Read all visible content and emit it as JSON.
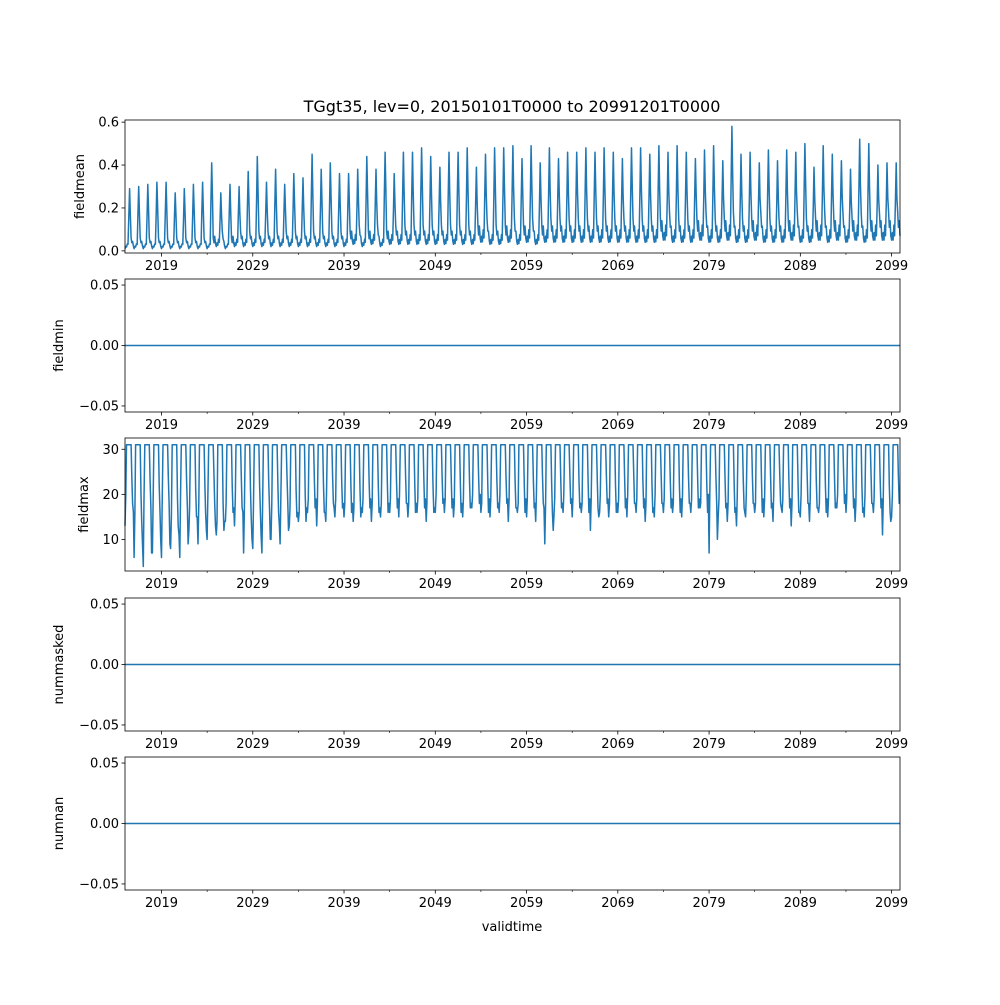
{
  "chart_data": {
    "type": "line",
    "title": "TGgt35, lev=0, 20150101T0000 to 20991201T0000",
    "xlabel": "validtime",
    "x_tick_labels": [
      "2019",
      "2029",
      "2039",
      "2049",
      "2059",
      "2069",
      "2079",
      "2089",
      "2099"
    ],
    "xlim": [
      "2015-01",
      "2099-12"
    ],
    "line_color": "#1f77b4",
    "grid": false,
    "panels": [
      {
        "ylabel": "fieldmean",
        "ylim": [
          -0.01,
          0.61
        ],
        "y_ticks": [
          0.0,
          0.2,
          0.4,
          0.6
        ],
        "y_tick_labels": [
          "0.0",
          "0.2",
          "0.4",
          "0.6"
        ],
        "series": [
          {
            "x": [
              "2015",
              "2016",
              "2017",
              "2018",
              "2019",
              "2020",
              "2021",
              "2022",
              "2023",
              "2024",
              "2025",
              "2026",
              "2027",
              "2028",
              "2029",
              "2030",
              "2031",
              "2032",
              "2033",
              "2034",
              "2035",
              "2036",
              "2037",
              "2038",
              "2039",
              "2040",
              "2041",
              "2042",
              "2043",
              "2044",
              "2045",
              "2046",
              "2047",
              "2048",
              "2049",
              "2050",
              "2051",
              "2052",
              "2053",
              "2054",
              "2055",
              "2056",
              "2057",
              "2058",
              "2059",
              "2060",
              "2061",
              "2062",
              "2063",
              "2064",
              "2065",
              "2066",
              "2067",
              "2068",
              "2069",
              "2070",
              "2071",
              "2072",
              "2073",
              "2074",
              "2075",
              "2076",
              "2077",
              "2078",
              "2079",
              "2080",
              "2081",
              "2082",
              "2083",
              "2084",
              "2085",
              "2086",
              "2087",
              "2088",
              "2089",
              "2090",
              "2091",
              "2092",
              "2093",
              "2094",
              "2095",
              "2096",
              "2097",
              "2098",
              "2099"
            ],
            "summer_peak": [
              0.29,
              0.3,
              0.31,
              0.32,
              0.32,
              0.27,
              0.29,
              0.31,
              0.32,
              0.41,
              0.27,
              0.31,
              0.3,
              0.37,
              0.44,
              0.32,
              0.38,
              0.31,
              0.36,
              0.34,
              0.45,
              0.38,
              0.41,
              0.36,
              0.36,
              0.38,
              0.44,
              0.38,
              0.46,
              0.36,
              0.46,
              0.46,
              0.48,
              0.44,
              0.39,
              0.46,
              0.46,
              0.48,
              0.39,
              0.45,
              0.48,
              0.48,
              0.49,
              0.43,
              0.49,
              0.41,
              0.48,
              0.43,
              0.46,
              0.46,
              0.48,
              0.46,
              0.48,
              0.46,
              0.43,
              0.48,
              0.48,
              0.45,
              0.49,
              0.46,
              0.49,
              0.46,
              0.43,
              0.47,
              0.49,
              0.42,
              0.58,
              0.45,
              0.46,
              0.41,
              0.47,
              0.42,
              0.47,
              0.46,
              0.5,
              0.39,
              0.49,
              0.45,
              0.42,
              0.38,
              0.52,
              0.5,
              0.4,
              0.41,
              0.41
            ],
            "winter_low": [
              0.01,
              0.01,
              0.01,
              0.01,
              0.01,
              0.01,
              0.01,
              0.01,
              0.01,
              0.01,
              0.02,
              0.01,
              0.02,
              0.02,
              0.02,
              0.02,
              0.02,
              0.02,
              0.02,
              0.02,
              0.02,
              0.02,
              0.02,
              0.02,
              0.02,
              0.03,
              0.02,
              0.03,
              0.02,
              0.03,
              0.03,
              0.03,
              0.03,
              0.03,
              0.03,
              0.03,
              0.03,
              0.03,
              0.03,
              0.04,
              0.03,
              0.03,
              0.04,
              0.03,
              0.04,
              0.03,
              0.04,
              0.04,
              0.04,
              0.04,
              0.04,
              0.04,
              0.04,
              0.04,
              0.04,
              0.04,
              0.04,
              0.04,
              0.04,
              0.05,
              0.04,
              0.04,
              0.04,
              0.05,
              0.04,
              0.04,
              0.05,
              0.04,
              0.04,
              0.05,
              0.04,
              0.04,
              0.04,
              0.05,
              0.04,
              0.04,
              0.05,
              0.04,
              0.05,
              0.04,
              0.05,
              0.04,
              0.05,
              0.05,
              0.05
            ]
          }
        ]
      },
      {
        "ylabel": "fieldmin",
        "ylim": [
          -0.055,
          0.055
        ],
        "y_ticks": [
          -0.05,
          0.0,
          0.05
        ],
        "y_tick_labels": [
          "−0.05",
          "0.00",
          "0.05"
        ],
        "series": [
          {
            "constant": 0.0
          }
        ]
      },
      {
        "ylabel": "fieldmax",
        "ylim": [
          3,
          32.5
        ],
        "y_ticks": [
          10,
          20,
          30
        ],
        "y_tick_labels": [
          "10",
          "20",
          "30"
        ],
        "series": [
          {
            "x": [
              "2015",
              "2016",
              "2017",
              "2018",
              "2019",
              "2020",
              "2021",
              "2022",
              "2023",
              "2024",
              "2025",
              "2026",
              "2027",
              "2028",
              "2029",
              "2030",
              "2031",
              "2032",
              "2033",
              "2034",
              "2035",
              "2036",
              "2037",
              "2038",
              "2039",
              "2040",
              "2041",
              "2042",
              "2043",
              "2044",
              "2045",
              "2046",
              "2047",
              "2048",
              "2049",
              "2050",
              "2051",
              "2052",
              "2053",
              "2054",
              "2055",
              "2056",
              "2057",
              "2058",
              "2059",
              "2060",
              "2061",
              "2062",
              "2063",
              "2064",
              "2065",
              "2066",
              "2067",
              "2068",
              "2069",
              "2070",
              "2071",
              "2072",
              "2073",
              "2074",
              "2075",
              "2076",
              "2077",
              "2078",
              "2079",
              "2080",
              "2081",
              "2082",
              "2083",
              "2084",
              "2085",
              "2086",
              "2087",
              "2088",
              "2089",
              "2090",
              "2091",
              "2092",
              "2093",
              "2094",
              "2095",
              "2096",
              "2097",
              "2098",
              "2099"
            ],
            "summer_max": 31,
            "yearly_min": [
              13,
              6,
              4,
              7,
              6,
              8,
              6,
              12,
              9,
              10,
              11,
              14,
              13,
              7,
              8,
              7,
              10,
              9,
              13,
              14,
              16,
              13,
              14,
              15,
              15,
              14,
              16,
              14,
              15,
              16,
              15,
              15,
              16,
              14,
              16,
              16,
              15,
              15,
              17,
              16,
              15,
              16,
              14,
              16,
              15,
              14,
              9,
              15,
              16,
              15,
              16,
              12,
              16,
              15,
              16,
              15,
              16,
              14,
              15,
              16,
              16,
              15,
              16,
              17,
              7,
              15,
              14,
              13,
              15,
              16,
              15,
              14,
              16,
              13,
              15,
              14,
              16,
              15,
              17,
              16,
              14,
              15,
              16,
              11,
              15
            ],
            "yearly_mid": [
              20,
              16,
              19,
              18,
              20,
              15,
              19,
              17,
              18,
              20,
              14,
              18,
              19,
              17,
              18,
              19,
              18,
              20,
              17,
              16,
              19,
              18,
              20,
              19,
              18,
              17,
              19,
              18,
              18,
              19,
              20,
              18,
              19,
              18,
              20,
              19,
              18,
              19,
              20,
              18,
              19,
              20,
              19,
              18,
              19,
              20,
              18,
              19,
              20,
              19,
              18,
              19,
              20,
              18,
              19,
              20,
              19,
              18,
              20,
              19,
              18,
              20,
              19,
              18,
              20,
              19,
              18,
              19,
              20,
              18,
              19,
              20,
              19,
              18,
              20,
              19,
              18,
              19,
              20,
              19,
              18,
              20,
              19,
              18,
              20
            ]
          }
        ]
      },
      {
        "ylabel": "nummasked",
        "ylim": [
          -0.055,
          0.055
        ],
        "y_ticks": [
          -0.05,
          0.0,
          0.05
        ],
        "y_tick_labels": [
          "−0.05",
          "0.00",
          "0.05"
        ],
        "series": [
          {
            "constant": 0.0
          }
        ]
      },
      {
        "ylabel": "numnan",
        "ylim": [
          -0.055,
          0.055
        ],
        "y_ticks": [
          -0.05,
          0.0,
          0.05
        ],
        "y_tick_labels": [
          "−0.05",
          "0.00",
          "0.05"
        ],
        "series": [
          {
            "constant": 0.0
          }
        ]
      }
    ]
  }
}
